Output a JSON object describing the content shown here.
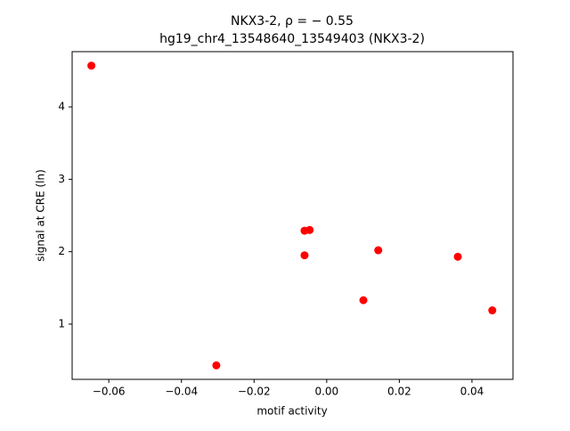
{
  "chart_data": {
    "type": "scatter",
    "title": "NKX3-2, ρ = − 0.55",
    "subtitle": "hg19_chr4_13548640_13549403 (NKX3-2)",
    "x_label": "motif activity",
    "y_label": "signal at CRE (ln)",
    "color": "#ff0000",
    "series": [
      {
        "x": [
          -0.0648,
          -0.0304,
          -0.0061,
          -0.0047,
          -0.0061,
          0.0101,
          0.0142,
          0.0361,
          0.0456
        ],
        "values": [
          4.57,
          0.43,
          2.29,
          2.3,
          1.95,
          1.33,
          2.02,
          1.93,
          1.19
        ]
      }
    ],
    "xlim": [
      -0.0701,
      0.0513
    ],
    "ylim": [
      0.237,
      4.763
    ],
    "xticks": [
      {
        "value": -0.06,
        "label": "−0.06"
      },
      {
        "value": -0.04,
        "label": "−0.04"
      },
      {
        "value": -0.02,
        "label": "−0.02"
      },
      {
        "value": 0,
        "label": "0.00"
      },
      {
        "value": 0.02,
        "label": "0.02"
      },
      {
        "value": 0.04,
        "label": "0.04"
      }
    ],
    "yticks": [
      1,
      2,
      3,
      4
    ]
  }
}
